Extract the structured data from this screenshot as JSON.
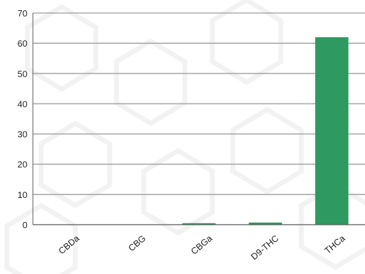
{
  "chart_data": {
    "type": "bar",
    "categories": [
      "CBDa",
      "CBG",
      "CBGa",
      "D9-THC",
      "THCa"
    ],
    "values": [
      0,
      0,
      0.5,
      0.7,
      62
    ],
    "title": "",
    "xlabel": "",
    "ylabel": "",
    "ylim": [
      0,
      70
    ],
    "yticks": [
      "0",
      "10",
      "20",
      "30",
      "40",
      "50",
      "60",
      "70"
    ],
    "grid": true,
    "legend": "none",
    "colors": {
      "bar": "#2e9960",
      "grid": "#a8a8a8",
      "axis": "#555555",
      "watermark": "#f0f0f0"
    }
  }
}
